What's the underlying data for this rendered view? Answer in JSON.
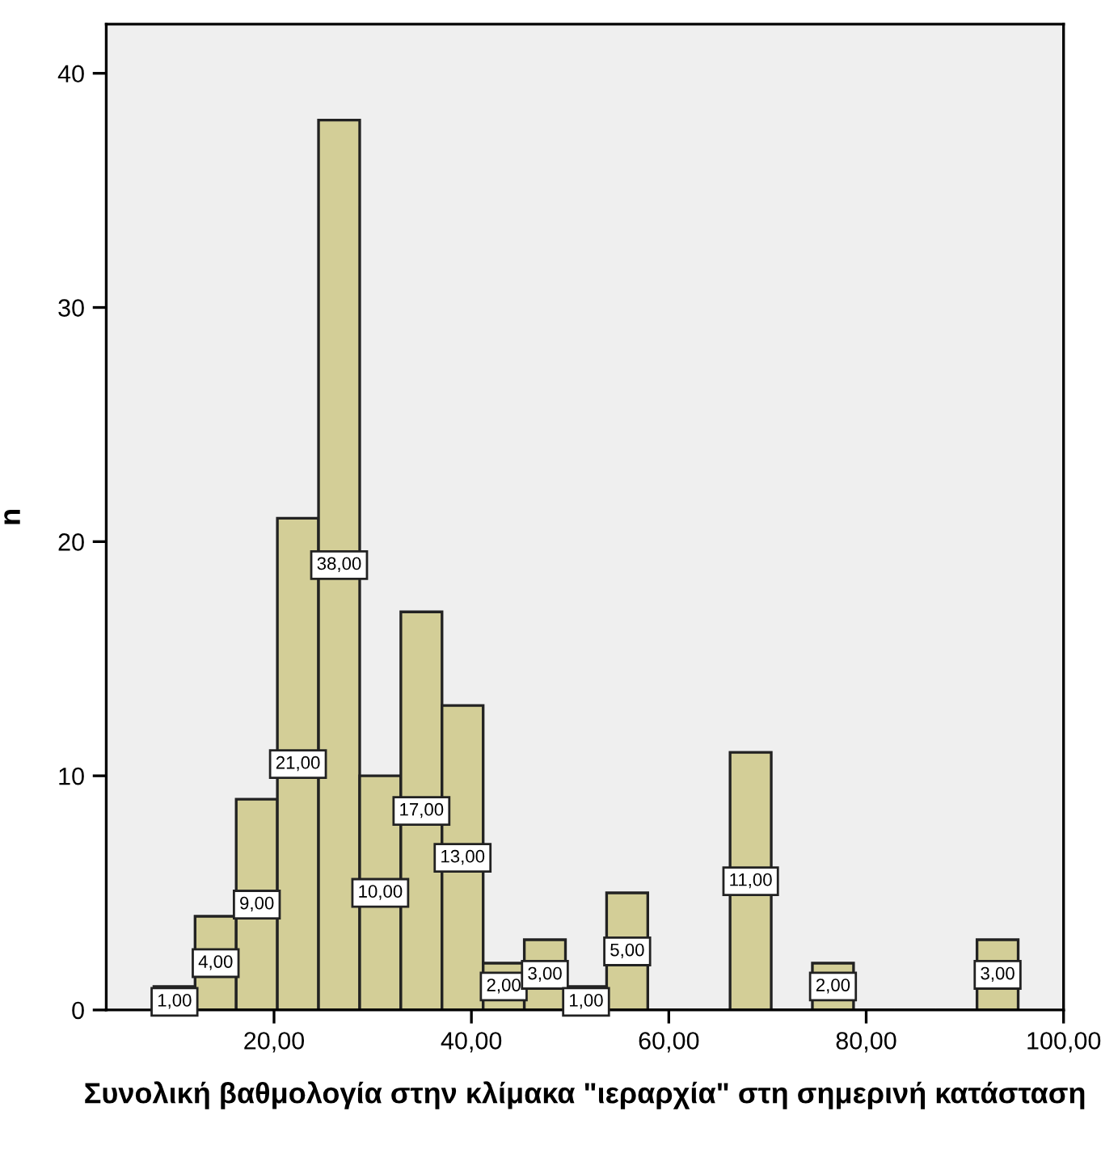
{
  "chart_data": {
    "type": "histogram",
    "xlabel": "Συνολική βαθμολογία στην κλίμακα \"ιεραρχία\" στη σημερινή κατάσταση",
    "ylabel": "n",
    "bins": [
      7.83,
      12.0,
      16.17,
      20.34,
      24.51,
      28.68,
      32.85,
      37.02,
      41.19,
      45.36,
      49.53,
      53.7,
      57.87,
      62.04,
      66.21,
      70.38,
      74.55,
      78.72,
      82.89,
      87.06,
      91.23,
      95.4
    ],
    "values": [
      1,
      4,
      9,
      21,
      38,
      10,
      17,
      13,
      2,
      3,
      1,
      5,
      0,
      0,
      11,
      0,
      2,
      0,
      0,
      0,
      3
    ],
    "value_labels": [
      "1,00",
      "4,00",
      "9,00",
      "21,00",
      "38,00",
      "10,00",
      "17,00",
      "13,00",
      "2,00",
      "3,00",
      "1,00",
      "5,00",
      null,
      null,
      "11,00",
      null,
      "2,00",
      null,
      null,
      null,
      "3,00"
    ],
    "color": "#d3ce97",
    "xlim": [
      3.0,
      100
    ],
    "xticks": [
      {
        "value": 20,
        "label": "20,00"
      },
      {
        "value": 40,
        "label": "40,00"
      },
      {
        "value": 60,
        "label": "60,00"
      },
      {
        "value": 80,
        "label": "80,00"
      },
      {
        "value": 100,
        "label": "100,00"
      }
    ],
    "ylim": [
      0,
      42.1
    ],
    "yticks": [
      0,
      10,
      20,
      30,
      40
    ],
    "grid": false,
    "legend": false
  }
}
